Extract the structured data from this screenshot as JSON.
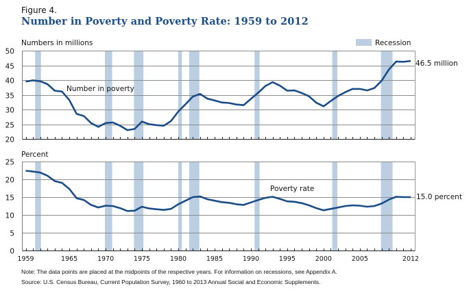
{
  "figure_label": "Figure 4.",
  "title": "Number in Poverty and Poverty Rate: 1959 to 2012",
  "note": "Note: The data points are placed at the midpoints of the respective years. For information on recessions, see Appendix A.",
  "source": "Source: U.S. Census Bureau, Current Population Survey, 1960 to 2013 Annual Social and Economic Supplements.",
  "colors": {
    "line": "#1a4c87",
    "recession": "#bccfe2",
    "grid": "#8c8c8c",
    "title": "#1d4f8a"
  },
  "chart_data": [
    {
      "type": "line",
      "title": "Number in Poverty",
      "ylabel": "Numbers in millions",
      "ylim": [
        20,
        50
      ],
      "yticks": [
        20,
        25,
        30,
        35,
        40,
        45,
        50
      ],
      "xlim": [
        1959,
        2012
      ],
      "xtick_labels": [
        "1959",
        "1965",
        "1970",
        "1975",
        "1980",
        "1985",
        "1990",
        "1995",
        "2000",
        "2005",
        "2012"
      ],
      "series_label": "Number in poverty",
      "end_label": "46.5 million",
      "legend": {
        "label": "Recession",
        "position": "top-right"
      },
      "grid": true,
      "x": [
        1959,
        1960,
        1961,
        1962,
        1963,
        1964,
        1965,
        1966,
        1967,
        1968,
        1969,
        1970,
        1971,
        1972,
        1973,
        1974,
        1975,
        1976,
        1977,
        1978,
        1979,
        1980,
        1981,
        1982,
        1983,
        1984,
        1985,
        1986,
        1987,
        1988,
        1989,
        1990,
        1991,
        1992,
        1993,
        1994,
        1995,
        1996,
        1997,
        1998,
        1999,
        2000,
        2001,
        2002,
        2003,
        2004,
        2005,
        2006,
        2007,
        2008,
        2009,
        2010,
        2011,
        2012
      ],
      "values": [
        39.5,
        39.9,
        39.6,
        38.6,
        36.4,
        36.1,
        33.2,
        28.5,
        27.8,
        25.4,
        24.1,
        25.4,
        25.6,
        24.5,
        23.0,
        23.4,
        25.9,
        25.0,
        24.7,
        24.5,
        26.1,
        29.3,
        31.8,
        34.4,
        35.3,
        33.7,
        33.1,
        32.4,
        32.2,
        31.7,
        31.5,
        33.6,
        35.7,
        38.0,
        39.3,
        38.1,
        36.4,
        36.5,
        35.6,
        34.5,
        32.3,
        31.1,
        32.9,
        34.6,
        35.9,
        37.0,
        37.0,
        36.5,
        37.3,
        39.8,
        43.6,
        46.3,
        46.2,
        46.5
      ]
    },
    {
      "type": "line",
      "title": "Poverty Rate",
      "ylabel": "Percent",
      "ylim": [
        0,
        25
      ],
      "yticks": [
        0,
        5,
        10,
        15,
        20,
        25
      ],
      "xlim": [
        1959,
        2012
      ],
      "xtick_labels": [
        "1959",
        "1965",
        "1970",
        "1975",
        "1980",
        "1985",
        "1990",
        "1995",
        "2000",
        "2005",
        "2012"
      ],
      "series_label": "Poverty rate",
      "end_label": "15.0 percent",
      "grid": true,
      "x": [
        1959,
        1960,
        1961,
        1962,
        1963,
        1964,
        1965,
        1966,
        1967,
        1968,
        1969,
        1970,
        1971,
        1972,
        1973,
        1974,
        1975,
        1976,
        1977,
        1978,
        1979,
        1980,
        1981,
        1982,
        1983,
        1984,
        1985,
        1986,
        1987,
        1988,
        1989,
        1990,
        1991,
        1992,
        1993,
        1994,
        1995,
        1996,
        1997,
        1998,
        1999,
        2000,
        2001,
        2002,
        2003,
        2004,
        2005,
        2006,
        2007,
        2008,
        2009,
        2010,
        2011,
        2012
      ],
      "values": [
        22.4,
        22.2,
        21.9,
        21.0,
        19.5,
        19.0,
        17.3,
        14.7,
        14.2,
        12.8,
        12.1,
        12.6,
        12.5,
        11.9,
        11.1,
        11.2,
        12.3,
        11.8,
        11.6,
        11.4,
        11.7,
        13.0,
        14.0,
        15.0,
        15.2,
        14.4,
        14.0,
        13.6,
        13.4,
        13.0,
        12.8,
        13.5,
        14.2,
        14.8,
        15.1,
        14.5,
        13.8,
        13.7,
        13.3,
        12.7,
        11.9,
        11.3,
        11.7,
        12.1,
        12.5,
        12.7,
        12.6,
        12.3,
        12.5,
        13.2,
        14.3,
        15.1,
        15.0,
        15.0
      ]
    }
  ],
  "recessions": [
    [
      1960.3,
      1961.1
    ],
    [
      1969.9,
      1970.9
    ],
    [
      1973.9,
      1975.2
    ],
    [
      1980.0,
      1980.5
    ],
    [
      1981.5,
      1982.9
    ],
    [
      1990.5,
      1991.2
    ],
    [
      2001.2,
      2001.9
    ],
    [
      2007.9,
      2009.5
    ]
  ]
}
